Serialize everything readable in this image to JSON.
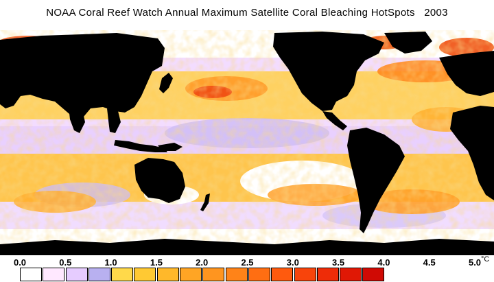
{
  "title": "NOAA Coral Reef Watch Annual Maximum Satellite Coral Bleaching HotSpots   2003",
  "colors": {
    "land": "#000000",
    "ocean_low": "#ffffff",
    "ocean_lilac": "#e6ccff",
    "ocean_purple": "#b5b0ee",
    "ocean_yellow": "#ffd040",
    "ocean_orange": "#ffa028",
    "ocean_red": "#f04010"
  },
  "legend": {
    "labels": [
      "0.0",
      "0.5",
      "1.0",
      "1.5",
      "2.0",
      "2.5",
      "3.0",
      "3.5",
      "4.0",
      "4.5",
      "5.0"
    ],
    "unit": "°C",
    "swatches": [
      "#ffffff",
      "#ffe8ff",
      "#e6ccff",
      "#b8b0f0",
      "#ffd94a",
      "#ffc933",
      "#ffb82a",
      "#ffa524",
      "#ff951f",
      "#ff8318",
      "#ff6e12",
      "#ff5a0e",
      "#f8440b",
      "#ee2c08",
      "#e01805",
      "#d00a04"
    ]
  }
}
